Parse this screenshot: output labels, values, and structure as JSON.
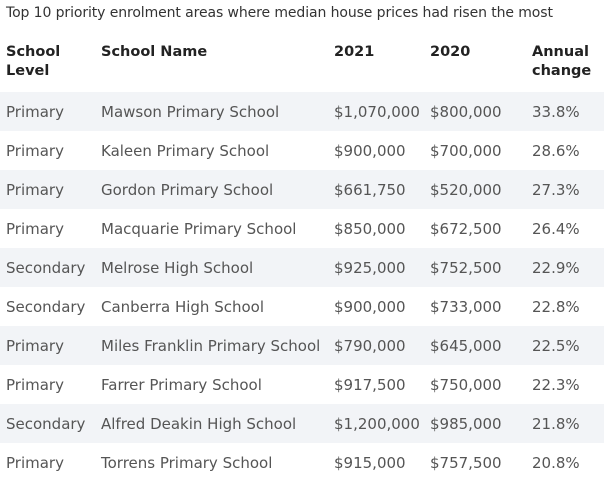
{
  "title": "Top 10 priority enrolment areas where median house prices had risen the most",
  "headers": {
    "level": "School Level",
    "name": "School Name",
    "y2021": "2021",
    "y2020": "2020",
    "change": "Annual change"
  },
  "rows": [
    {
      "level": "Primary",
      "name": "Mawson Primary School",
      "y2021": "$1,070,000",
      "y2020": "$800,000",
      "change": "33.8%"
    },
    {
      "level": "Primary",
      "name": "Kaleen Primary School",
      "y2021": "$900,000",
      "y2020": "$700,000",
      "change": "28.6%"
    },
    {
      "level": "Primary",
      "name": "Gordon Primary School",
      "y2021": "$661,750",
      "y2020": "$520,000",
      "change": "27.3%"
    },
    {
      "level": "Primary",
      "name": "Macquarie Primary School",
      "y2021": "$850,000",
      "y2020": "$672,500",
      "change": "26.4%"
    },
    {
      "level": "Secondary",
      "name": "Melrose High School",
      "y2021": "$925,000",
      "y2020": "$752,500",
      "change": "22.9%"
    },
    {
      "level": "Secondary",
      "name": "Canberra High School",
      "y2021": "$900,000",
      "y2020": "$733,000",
      "change": "22.8%"
    },
    {
      "level": "Primary",
      "name": "Miles Franklin Primary School",
      "y2021": "$790,000",
      "y2020": "$645,000",
      "change": "22.5%"
    },
    {
      "level": "Primary",
      "name": "Farrer Primary School",
      "y2021": "$917,500",
      "y2020": "$750,000",
      "change": "22.3%"
    },
    {
      "level": "Secondary",
      "name": "Alfred Deakin High School",
      "y2021": "$1,200,000",
      "y2020": "$985,000",
      "change": "21.8%"
    },
    {
      "level": "Primary",
      "name": "Torrens Primary School",
      "y2021": "$915,000",
      "y2020": "$757,500",
      "change": "20.8%"
    }
  ],
  "colors": {
    "stripe": "#f2f4f7",
    "header_text": "#222222",
    "cell_text": "#555555"
  }
}
